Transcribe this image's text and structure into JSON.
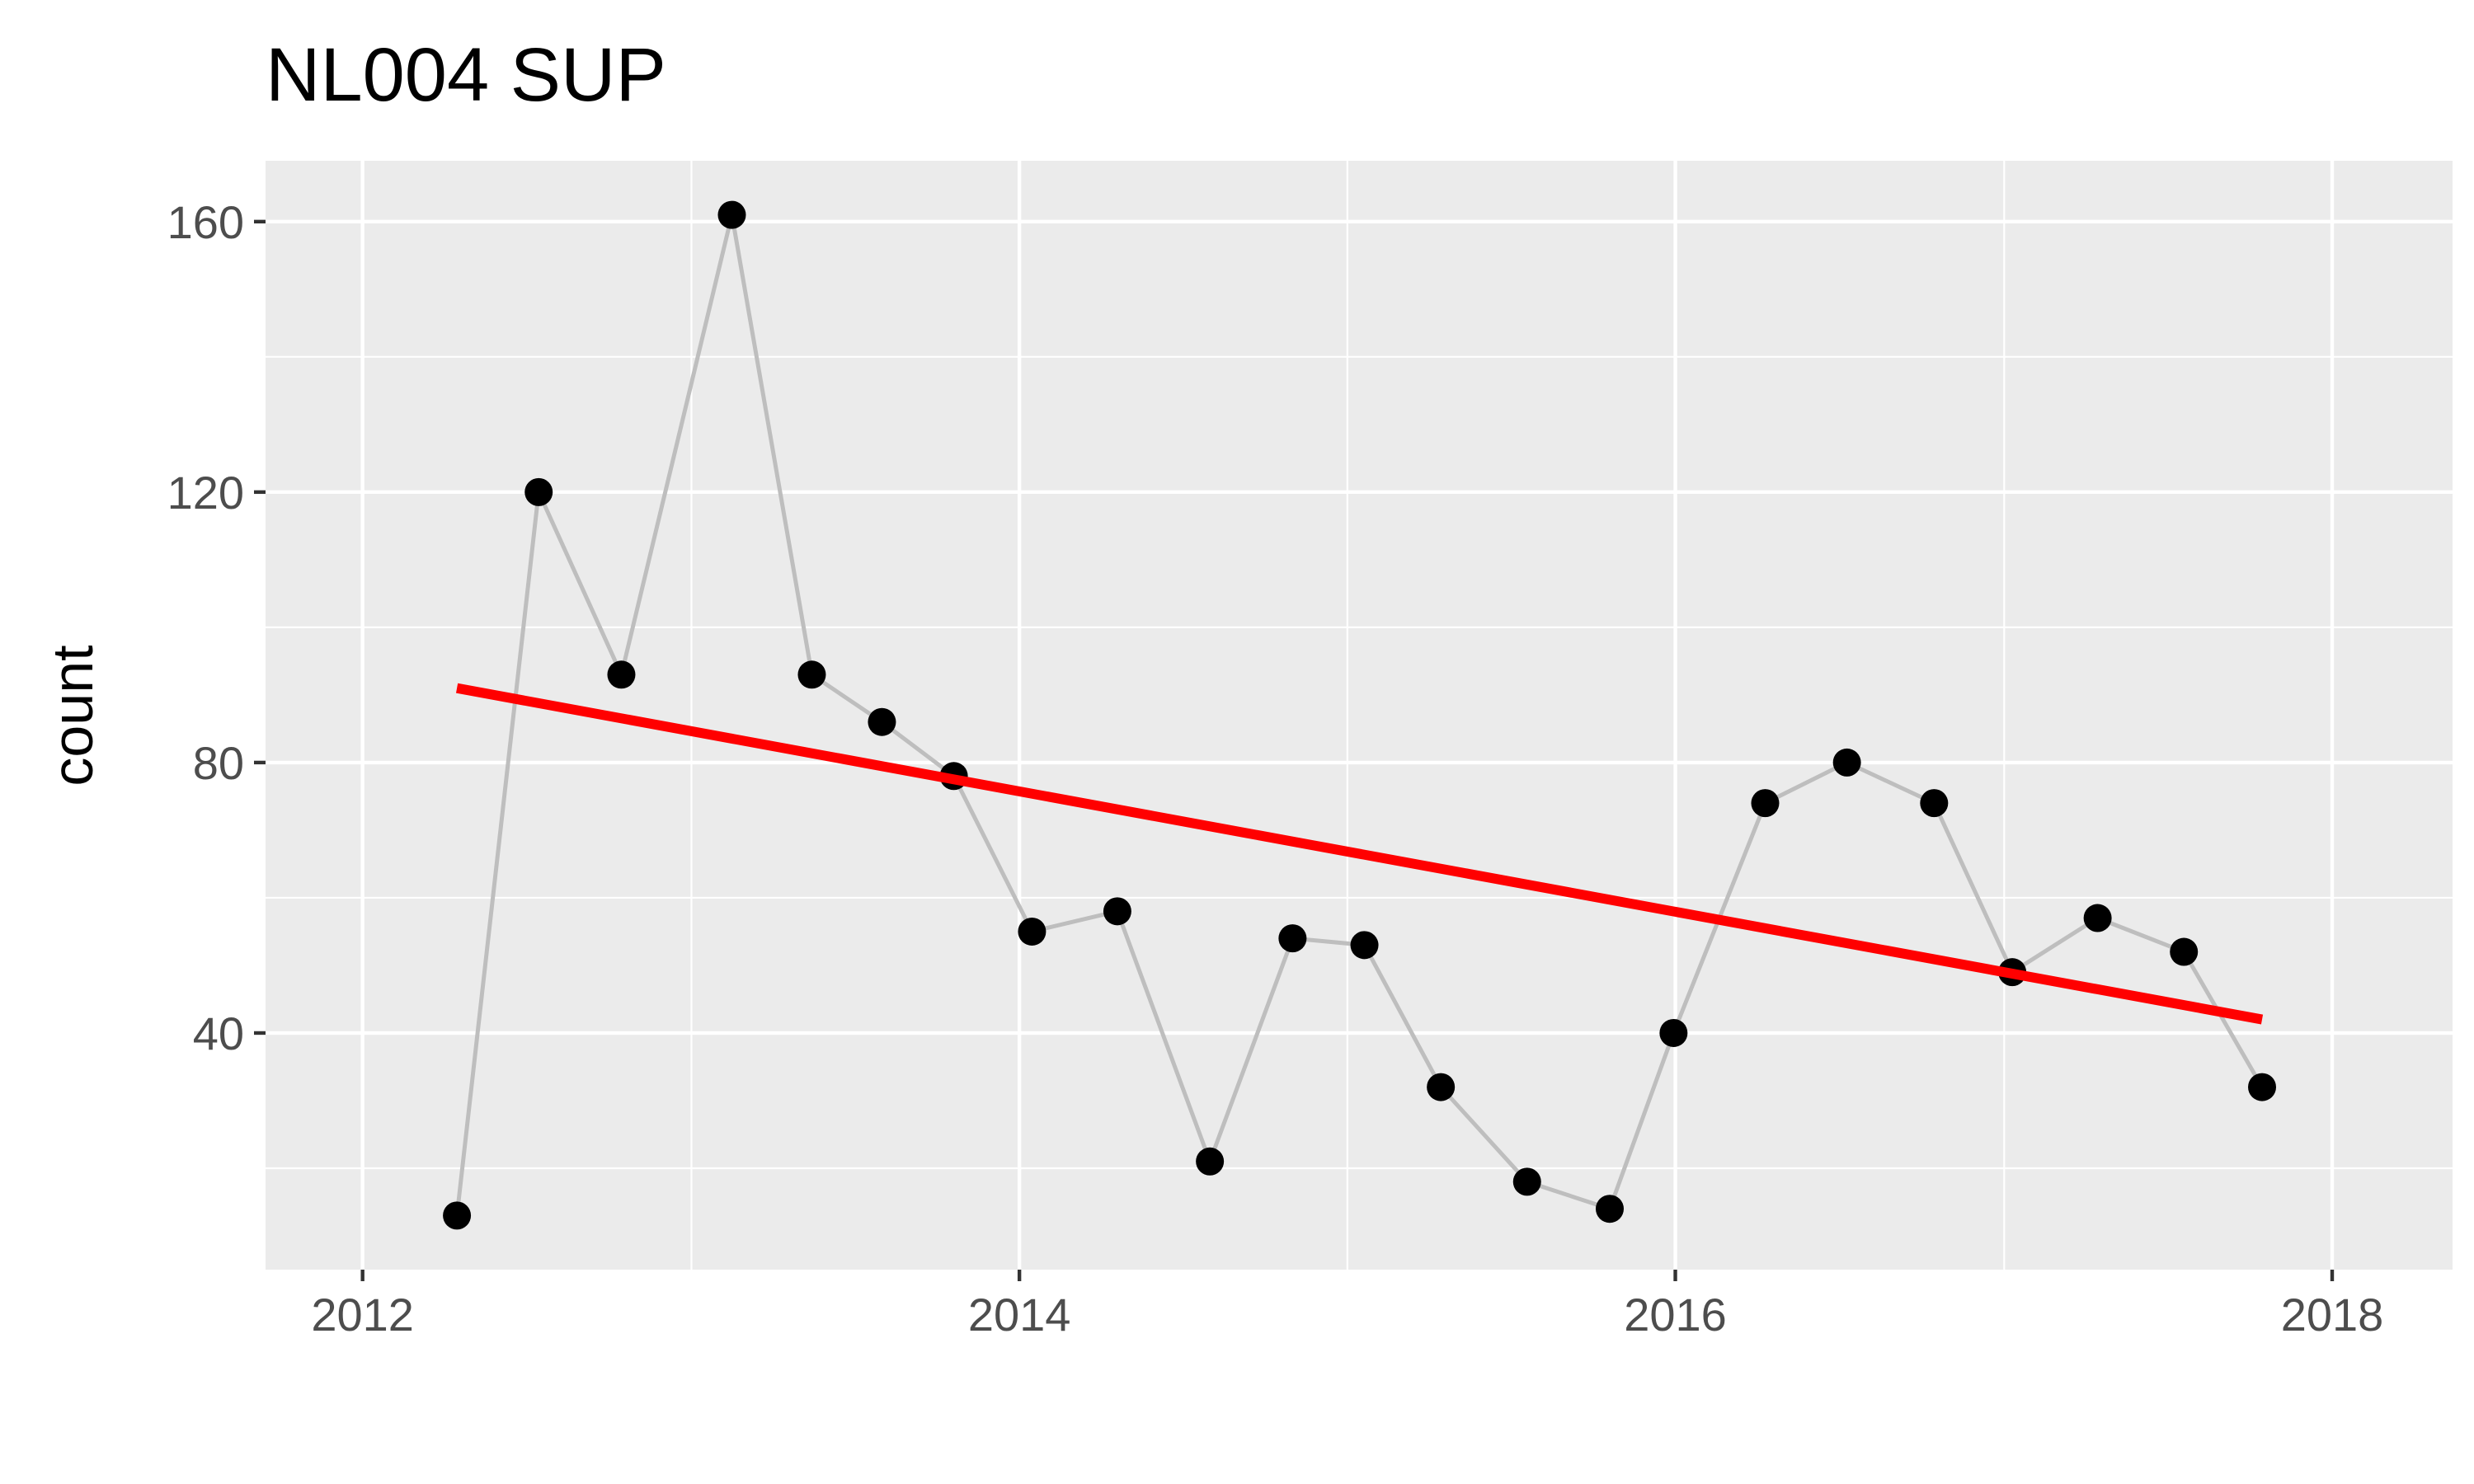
{
  "chart_data": {
    "type": "line",
    "title": "NL004  SUP",
    "xlabel": "",
    "ylabel": "count",
    "x_ticks": [
      "2012",
      "2014",
      "2016",
      "2018"
    ],
    "y_ticks": [
      "40",
      "80",
      "120",
      "160"
    ],
    "xlim": [
      "2011-09-15",
      "2018-05-15"
    ],
    "ylim": [
      5,
      169
    ],
    "grid": true,
    "legend": "none",
    "colors": {
      "panel_background": "#EBEBEB",
      "grid": "#FFFFFF",
      "series_line": "#BEBEBE",
      "points": "#000000",
      "trend": "#FF0000"
    },
    "series": [
      {
        "x": [
          "2012-04-15",
          "2012-07-15",
          "2012-10-15",
          "2013-02-15",
          "2013-05-15",
          "2013-08-01",
          "2013-10-20",
          "2014-01-15",
          "2014-04-20",
          "2014-08-01",
          "2014-11-01",
          "2015-01-20",
          "2015-04-15",
          "2015-07-20",
          "2015-10-20",
          "2015-12-30",
          "2016-04-10",
          "2016-07-10",
          "2016-10-15",
          "2017-01-10",
          "2017-04-15",
          "2017-07-20",
          "2017-10-15"
        ],
        "values": [
          13,
          120,
          93,
          161,
          93,
          86,
          78,
          55,
          58,
          21,
          54,
          53,
          32,
          18,
          14,
          40,
          74,
          80,
          74,
          49,
          57,
          52,
          32
        ]
      }
    ],
    "trend_line": {
      "x": [
        "2012-04-15",
        "2017-10-15"
      ],
      "values": [
        91,
        42
      ]
    }
  }
}
